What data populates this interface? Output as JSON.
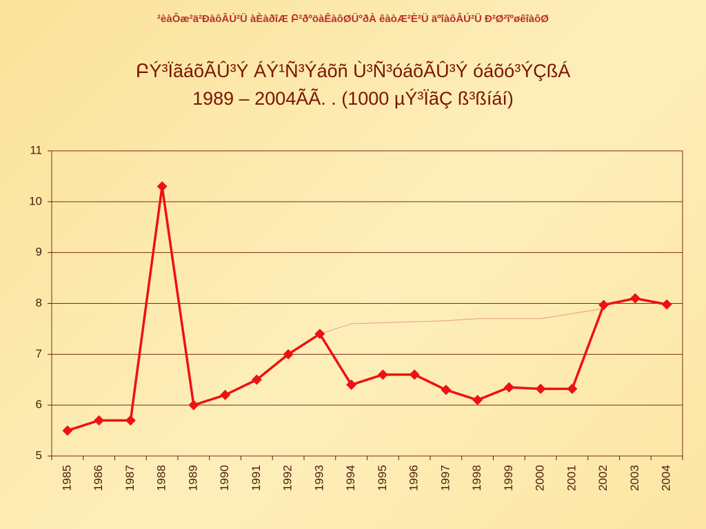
{
  "header": "²èàÔæ²ä²ÐàôÂÚ²Ü àÈàðîÆ Բ²ðºöàÊàôØÜºðÀ êàòÆ²È²Ü äºîàôÂÚ²Ü Ð²Ø²îºøêîàôØ",
  "chart_data": {
    "type": "line",
    "title": [
      "ԲÝ³ÏãáõÃÛ³Ý ÁÝ¹Ñ³Ýáõñ Ù³Ñ³óáõÃÛ³Ý óáõó³ÝÇßÁ",
      "1989 – 2004ÃÃ. . (1000 µÝ³ÏãÇ ß³ßíáí)"
    ],
    "categories": [
      "1985",
      "1986",
      "1987",
      "1988",
      "1989",
      "1990",
      "1991",
      "1992",
      "1993",
      "1994",
      "1995",
      "1996",
      "1997",
      "1998",
      "1999",
      "2000",
      "2001",
      "2002",
      "2003",
      "2004"
    ],
    "series": [
      {
        "color": "#ee1111",
        "values": [
          5.5,
          5.7,
          5.7,
          10.3,
          6.0,
          6.2,
          6.5,
          7.0,
          7.4,
          6.4,
          6.6,
          6.6,
          6.3,
          6.1,
          6.35,
          6.32,
          6.32,
          7.97,
          8.1,
          7.98
        ]
      },
      {
        "color": "#e89a86",
        "values": [
          null,
          null,
          null,
          null,
          null,
          null,
          null,
          null,
          7.4,
          7.6,
          7.62,
          7.64,
          7.66,
          7.7,
          7.7,
          7.7,
          7.8,
          7.9,
          null,
          null
        ]
      }
    ],
    "ylim": [
      5,
      11
    ],
    "yticks": [
      5,
      6,
      7,
      8,
      9,
      10,
      11
    ],
    "grid": true
  }
}
